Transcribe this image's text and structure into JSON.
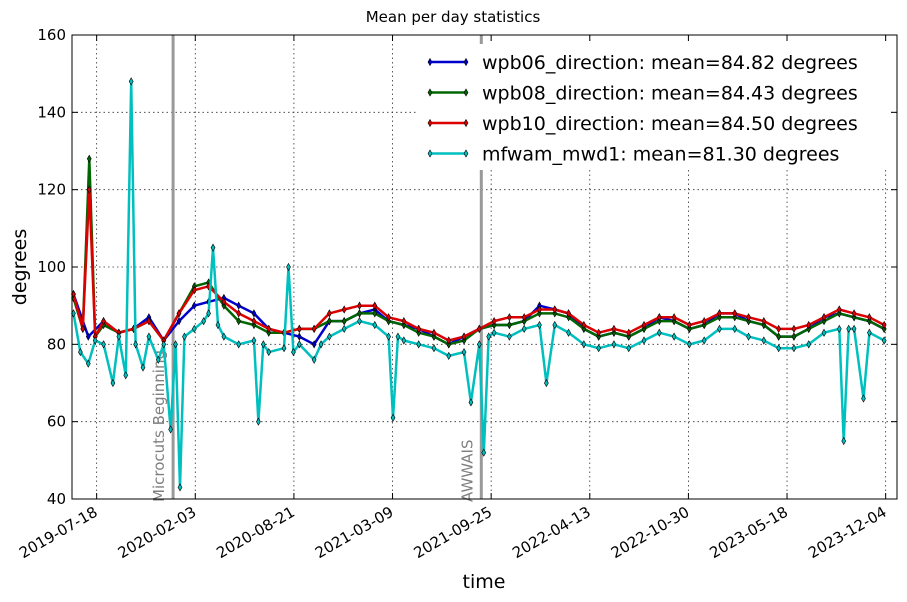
{
  "chart_data": {
    "type": "line",
    "title": "Mean per day statistics",
    "xlabel": "time",
    "ylabel": "degrees",
    "ylim": [
      40,
      160
    ],
    "yticks": [
      40,
      60,
      80,
      100,
      120,
      140,
      160
    ],
    "xlim": [
      "2019-05-29",
      "2023-12-27"
    ],
    "xticks": [
      "2019-07-18",
      "2020-02-03",
      "2020-08-21",
      "2021-03-09",
      "2021-09-25",
      "2022-04-13",
      "2022-10-30",
      "2023-05-18",
      "2023-12-04"
    ],
    "grid": true,
    "legend_position": "top-right",
    "annotations": [
      {
        "label": "Microcuts Beginning",
        "date": "2019-12-20",
        "color": "#999999"
      },
      {
        "label": "AWWAIS",
        "date": "2021-09-05",
        "color": "#999999"
      }
    ],
    "series": [
      {
        "name": "wpb06_direction",
        "legend": "wpb06_direction: mean=84.82 degrees",
        "color": "#0000cc",
        "points": [
          [
            "2019-06-01",
            93
          ],
          [
            "2019-07-01",
            82
          ],
          [
            "2019-08-01",
            86
          ],
          [
            "2019-09-01",
            83
          ],
          [
            "2019-10-01",
            84
          ],
          [
            "2019-11-01",
            87
          ],
          [
            "2019-12-01",
            81
          ],
          [
            "2020-01-01",
            86
          ],
          [
            "2020-02-01",
            90
          ],
          [
            "2020-03-01",
            91
          ],
          [
            "2020-04-01",
            92
          ],
          [
            "2020-05-01",
            90
          ],
          [
            "2020-06-01",
            88
          ],
          [
            "2020-07-01",
            84
          ],
          [
            "2020-08-01",
            83
          ],
          [
            "2020-09-01",
            82
          ],
          [
            "2020-10-01",
            80
          ],
          [
            "2020-11-01",
            86
          ],
          [
            "2020-12-01",
            86
          ],
          [
            "2021-01-01",
            88
          ],
          [
            "2021-02-01",
            89
          ],
          [
            "2021-03-01",
            86
          ],
          [
            "2021-04-01",
            85
          ],
          [
            "2021-05-01",
            84
          ],
          [
            "2021-06-01",
            82
          ],
          [
            "2021-07-01",
            80
          ],
          [
            "2021-08-01",
            82
          ],
          [
            "2021-09-01",
            84
          ],
          [
            "2021-10-01",
            85
          ],
          [
            "2021-11-01",
            85
          ],
          [
            "2021-12-01",
            86
          ],
          [
            "2022-01-01",
            90
          ],
          [
            "2022-02-01",
            89
          ],
          [
            "2022-03-01",
            88
          ],
          [
            "2022-04-01",
            84
          ],
          [
            "2022-05-01",
            82
          ],
          [
            "2022-06-01",
            83
          ],
          [
            "2022-07-01",
            82
          ],
          [
            "2022-08-01",
            84
          ],
          [
            "2022-09-01",
            87
          ],
          [
            "2022-10-01",
            86
          ],
          [
            "2022-11-01",
            84
          ],
          [
            "2022-12-01",
            85
          ],
          [
            "2023-01-01",
            88
          ],
          [
            "2023-02-01",
            88
          ],
          [
            "2023-03-01",
            86
          ],
          [
            "2023-04-01",
            85
          ],
          [
            "2023-05-01",
            82
          ],
          [
            "2023-06-01",
            82
          ],
          [
            "2023-07-01",
            84
          ],
          [
            "2023-08-01",
            87
          ],
          [
            "2023-09-01",
            88
          ],
          [
            "2023-10-01",
            87
          ],
          [
            "2023-11-01",
            86
          ],
          [
            "2023-12-01",
            84
          ]
        ]
      },
      {
        "name": "wpb08_direction",
        "legend": "wpb08_direction: mean=84.43 degrees",
        "color": "#006600",
        "points": [
          [
            "2019-06-01",
            92
          ],
          [
            "2019-06-20",
            84
          ],
          [
            "2019-07-03",
            128
          ],
          [
            "2019-07-15",
            82
          ],
          [
            "2019-08-01",
            85
          ],
          [
            "2019-09-01",
            83
          ],
          [
            "2019-10-01",
            84
          ],
          [
            "2019-11-01",
            86
          ],
          [
            "2019-12-01",
            81
          ],
          [
            "2020-01-01",
            88
          ],
          [
            "2020-02-01",
            95
          ],
          [
            "2020-03-01",
            96
          ],
          [
            "2020-04-01",
            90
          ],
          [
            "2020-05-01",
            86
          ],
          [
            "2020-06-01",
            85
          ],
          [
            "2020-07-01",
            83
          ],
          [
            "2020-08-01",
            83
          ],
          [
            "2020-09-01",
            84
          ],
          [
            "2020-10-01",
            84
          ],
          [
            "2020-11-01",
            86
          ],
          [
            "2020-12-01",
            86
          ],
          [
            "2021-01-01",
            88
          ],
          [
            "2021-02-01",
            88
          ],
          [
            "2021-03-01",
            86
          ],
          [
            "2021-04-01",
            85
          ],
          [
            "2021-05-01",
            83
          ],
          [
            "2021-06-01",
            82
          ],
          [
            "2021-07-01",
            80
          ],
          [
            "2021-08-01",
            81
          ],
          [
            "2021-09-01",
            84
          ],
          [
            "2021-10-01",
            85
          ],
          [
            "2021-11-01",
            85
          ],
          [
            "2021-12-01",
            86
          ],
          [
            "2022-01-01",
            88
          ],
          [
            "2022-02-01",
            88
          ],
          [
            "2022-03-01",
            87
          ],
          [
            "2022-04-01",
            84
          ],
          [
            "2022-05-01",
            82
          ],
          [
            "2022-06-01",
            83
          ],
          [
            "2022-07-01",
            82
          ],
          [
            "2022-08-01",
            84
          ],
          [
            "2022-09-01",
            86
          ],
          [
            "2022-10-01",
            86
          ],
          [
            "2022-11-01",
            84
          ],
          [
            "2022-12-01",
            85
          ],
          [
            "2023-01-01",
            87
          ],
          [
            "2023-02-01",
            87
          ],
          [
            "2023-03-01",
            86
          ],
          [
            "2023-04-01",
            85
          ],
          [
            "2023-05-01",
            82
          ],
          [
            "2023-06-01",
            82
          ],
          [
            "2023-07-01",
            84
          ],
          [
            "2023-08-01",
            86
          ],
          [
            "2023-09-01",
            88
          ],
          [
            "2023-10-01",
            87
          ],
          [
            "2023-11-01",
            86
          ],
          [
            "2023-12-01",
            84
          ]
        ]
      },
      {
        "name": "wpb10_direction",
        "legend": "wpb10_direction: mean=84.50 degrees",
        "color": "#dd0000",
        "points": [
          [
            "2019-06-01",
            93
          ],
          [
            "2019-06-20",
            84
          ],
          [
            "2019-07-03",
            120
          ],
          [
            "2019-07-15",
            82
          ],
          [
            "2019-08-01",
            86
          ],
          [
            "2019-09-01",
            83
          ],
          [
            "2019-10-01",
            84
          ],
          [
            "2019-11-01",
            86
          ],
          [
            "2019-12-01",
            81
          ],
          [
            "2020-01-01",
            88
          ],
          [
            "2020-02-01",
            94
          ],
          [
            "2020-03-01",
            95
          ],
          [
            "2020-04-01",
            91
          ],
          [
            "2020-05-01",
            88
          ],
          [
            "2020-06-01",
            86
          ],
          [
            "2020-07-01",
            84
          ],
          [
            "2020-08-01",
            83
          ],
          [
            "2020-09-01",
            84
          ],
          [
            "2020-10-01",
            84
          ],
          [
            "2020-11-01",
            88
          ],
          [
            "2020-12-01",
            89
          ],
          [
            "2021-01-01",
            90
          ],
          [
            "2021-02-01",
            90
          ],
          [
            "2021-03-01",
            87
          ],
          [
            "2021-04-01",
            86
          ],
          [
            "2021-05-01",
            84
          ],
          [
            "2021-06-01",
            83
          ],
          [
            "2021-07-01",
            81
          ],
          [
            "2021-08-01",
            82
          ],
          [
            "2021-09-01",
            84
          ],
          [
            "2021-10-01",
            86
          ],
          [
            "2021-11-01",
            87
          ],
          [
            "2021-12-01",
            87
          ],
          [
            "2022-01-01",
            89
          ],
          [
            "2022-02-01",
            89
          ],
          [
            "2022-03-01",
            88
          ],
          [
            "2022-04-01",
            85
          ],
          [
            "2022-05-01",
            83
          ],
          [
            "2022-06-01",
            84
          ],
          [
            "2022-07-01",
            83
          ],
          [
            "2022-08-01",
            85
          ],
          [
            "2022-09-01",
            87
          ],
          [
            "2022-10-01",
            87
          ],
          [
            "2022-11-01",
            85
          ],
          [
            "2022-12-01",
            86
          ],
          [
            "2023-01-01",
            88
          ],
          [
            "2023-02-01",
            88
          ],
          [
            "2023-03-01",
            87
          ],
          [
            "2023-04-01",
            86
          ],
          [
            "2023-05-01",
            84
          ],
          [
            "2023-06-01",
            84
          ],
          [
            "2023-07-01",
            85
          ],
          [
            "2023-08-01",
            87
          ],
          [
            "2023-09-01",
            89
          ],
          [
            "2023-10-01",
            88
          ],
          [
            "2023-11-01",
            87
          ],
          [
            "2023-12-01",
            85
          ]
        ]
      },
      {
        "name": "mfwam_mwd1",
        "legend": "mfwam_mwd1: mean=81.30 degrees",
        "color": "#00bfbf",
        "points": [
          [
            "2019-06-01",
            88
          ],
          [
            "2019-06-15",
            78
          ],
          [
            "2019-07-01",
            75
          ],
          [
            "2019-07-15",
            81
          ],
          [
            "2019-08-01",
            80
          ],
          [
            "2019-08-20",
            70
          ],
          [
            "2019-09-01",
            82
          ],
          [
            "2019-09-15",
            72
          ],
          [
            "2019-09-26",
            148
          ],
          [
            "2019-10-05",
            80
          ],
          [
            "2019-10-20",
            74
          ],
          [
            "2019-11-01",
            82
          ],
          [
            "2019-11-20",
            76
          ],
          [
            "2019-12-01",
            80
          ],
          [
            "2019-12-15",
            58
          ],
          [
            "2019-12-25",
            80
          ],
          [
            "2020-01-03",
            43
          ],
          [
            "2020-01-12",
            82
          ],
          [
            "2020-02-01",
            84
          ],
          [
            "2020-02-20",
            86
          ],
          [
            "2020-03-01",
            88
          ],
          [
            "2020-03-10",
            105
          ],
          [
            "2020-03-20",
            85
          ],
          [
            "2020-04-01",
            82
          ],
          [
            "2020-05-01",
            80
          ],
          [
            "2020-06-01",
            81
          ],
          [
            "2020-06-10",
            60
          ],
          [
            "2020-06-20",
            80
          ],
          [
            "2020-07-01",
            78
          ],
          [
            "2020-08-01",
            79
          ],
          [
            "2020-08-10",
            100
          ],
          [
            "2020-08-20",
            78
          ],
          [
            "2020-09-01",
            80
          ],
          [
            "2020-10-01",
            76
          ],
          [
            "2020-10-15",
            80
          ],
          [
            "2020-11-01",
            82
          ],
          [
            "2020-12-01",
            84
          ],
          [
            "2021-01-01",
            86
          ],
          [
            "2021-02-01",
            85
          ],
          [
            "2021-03-01",
            82
          ],
          [
            "2021-03-10",
            61
          ],
          [
            "2021-03-20",
            82
          ],
          [
            "2021-04-01",
            81
          ],
          [
            "2021-05-01",
            80
          ],
          [
            "2021-06-01",
            79
          ],
          [
            "2021-07-01",
            77
          ],
          [
            "2021-08-01",
            78
          ],
          [
            "2021-08-15",
            65
          ],
          [
            "2021-09-01",
            80
          ],
          [
            "2021-09-10",
            52
          ],
          [
            "2021-09-20",
            82
          ],
          [
            "2021-10-01",
            83
          ],
          [
            "2021-11-01",
            82
          ],
          [
            "2021-12-01",
            84
          ],
          [
            "2022-01-01",
            85
          ],
          [
            "2022-01-15",
            70
          ],
          [
            "2022-02-01",
            85
          ],
          [
            "2022-03-01",
            83
          ],
          [
            "2022-04-01",
            80
          ],
          [
            "2022-05-01",
            79
          ],
          [
            "2022-06-01",
            80
          ],
          [
            "2022-07-01",
            79
          ],
          [
            "2022-08-01",
            81
          ],
          [
            "2022-09-01",
            83
          ],
          [
            "2022-10-01",
            82
          ],
          [
            "2022-11-01",
            80
          ],
          [
            "2022-12-01",
            81
          ],
          [
            "2023-01-01",
            84
          ],
          [
            "2023-02-01",
            84
          ],
          [
            "2023-03-01",
            82
          ],
          [
            "2023-04-01",
            81
          ],
          [
            "2023-05-01",
            79
          ],
          [
            "2023-06-01",
            79
          ],
          [
            "2023-07-01",
            80
          ],
          [
            "2023-08-01",
            83
          ],
          [
            "2023-09-01",
            84
          ],
          [
            "2023-09-10",
            55
          ],
          [
            "2023-09-20",
            84
          ],
          [
            "2023-10-01",
            84
          ],
          [
            "2023-10-20",
            66
          ],
          [
            "2023-11-01",
            83
          ],
          [
            "2023-12-01",
            81
          ]
        ]
      }
    ]
  }
}
